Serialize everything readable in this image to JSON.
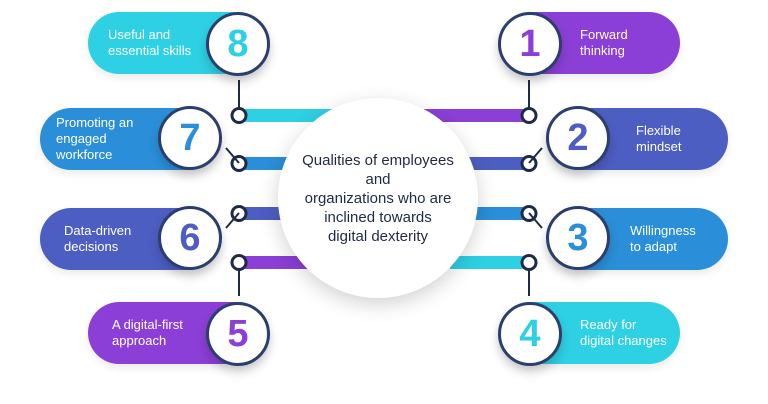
{
  "center": {
    "line1": "Qualities of employees and",
    "line2": "organizations who are",
    "line3": "inclined towards",
    "line4": "digital dexterity"
  },
  "items": [
    {
      "number": "1",
      "line1": "Forward",
      "line2": "thinking",
      "color": "#8b3fd6",
      "num_color": "#8b3fd6"
    },
    {
      "number": "2",
      "line1": "Flexible",
      "line2": "mindset",
      "color": "#4d5ec2",
      "num_color": "#4d5ec2"
    },
    {
      "number": "3",
      "line1": "Willingness",
      "line2": "to adapt",
      "color": "#2a8fd8",
      "num_color": "#2a8fd8"
    },
    {
      "number": "4",
      "line1": "Ready for",
      "line2": "digital changes",
      "color": "#2ed0e3",
      "num_color": "#2ed0e3"
    },
    {
      "number": "5",
      "line1": "A digital-first",
      "line2": "approach",
      "color": "#8b3fd6",
      "num_color": "#8b3fd6"
    },
    {
      "number": "6",
      "line1": "Data-driven",
      "line2": "decisions",
      "color": "#4d5ec2",
      "num_color": "#4d5ec2"
    },
    {
      "number": "7",
      "line1": "Promoting an",
      "line2": "engaged",
      "line3": "workforce",
      "color": "#2a8fd8",
      "num_color": "#2a8fd8"
    },
    {
      "number": "8",
      "line1": "Useful and",
      "line2": "essential skills",
      "color": "#2ed0e3",
      "num_color": "#2ed0e3"
    }
  ]
}
